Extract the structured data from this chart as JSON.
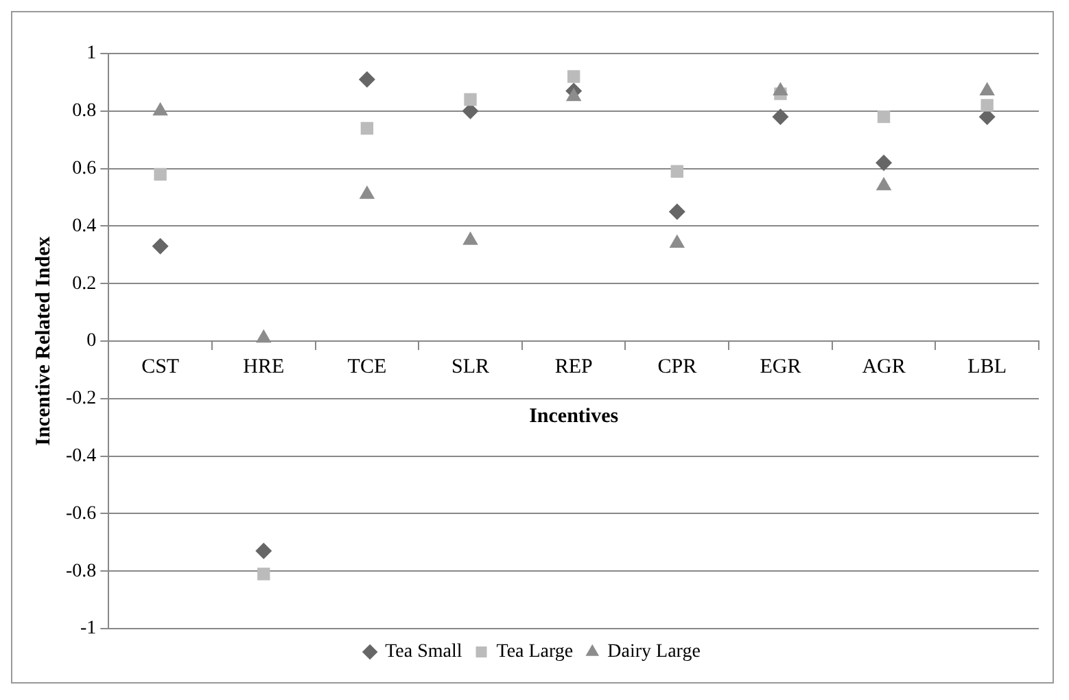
{
  "chart_data": {
    "type": "scatter",
    "xlabel": "Incentives",
    "ylabel": "Incentive Related Index",
    "categories": [
      "CST",
      "HRE",
      "TCE",
      "SLR",
      "REP",
      "CPR",
      "EGR",
      "AGR",
      "LBL"
    ],
    "series": [
      {
        "name": "Tea Small",
        "color": "#666666",
        "marker": "diamond",
        "values": [
          0.33,
          -0.73,
          0.91,
          0.8,
          0.87,
          0.45,
          0.78,
          0.62,
          0.78
        ]
      },
      {
        "name": "Tea Large",
        "color": "#bbbbbb",
        "marker": "square",
        "values": [
          0.58,
          -0.81,
          0.74,
          0.84,
          0.92,
          0.59,
          0.86,
          0.78,
          0.82
        ]
      },
      {
        "name": "Dairy Large",
        "color": "#8c8c8c",
        "marker": "triangle",
        "values": [
          0.8,
          0.01,
          0.51,
          0.35,
          0.85,
          0.34,
          0.87,
          0.54,
          0.87
        ]
      }
    ],
    "ylim": [
      -1,
      1
    ],
    "yticks": [
      -1,
      -0.8,
      -0.6,
      -0.4,
      -0.2,
      0,
      0.2,
      0.4,
      0.6,
      0.8,
      1
    ],
    "grid": "y",
    "legend": "bottom"
  }
}
